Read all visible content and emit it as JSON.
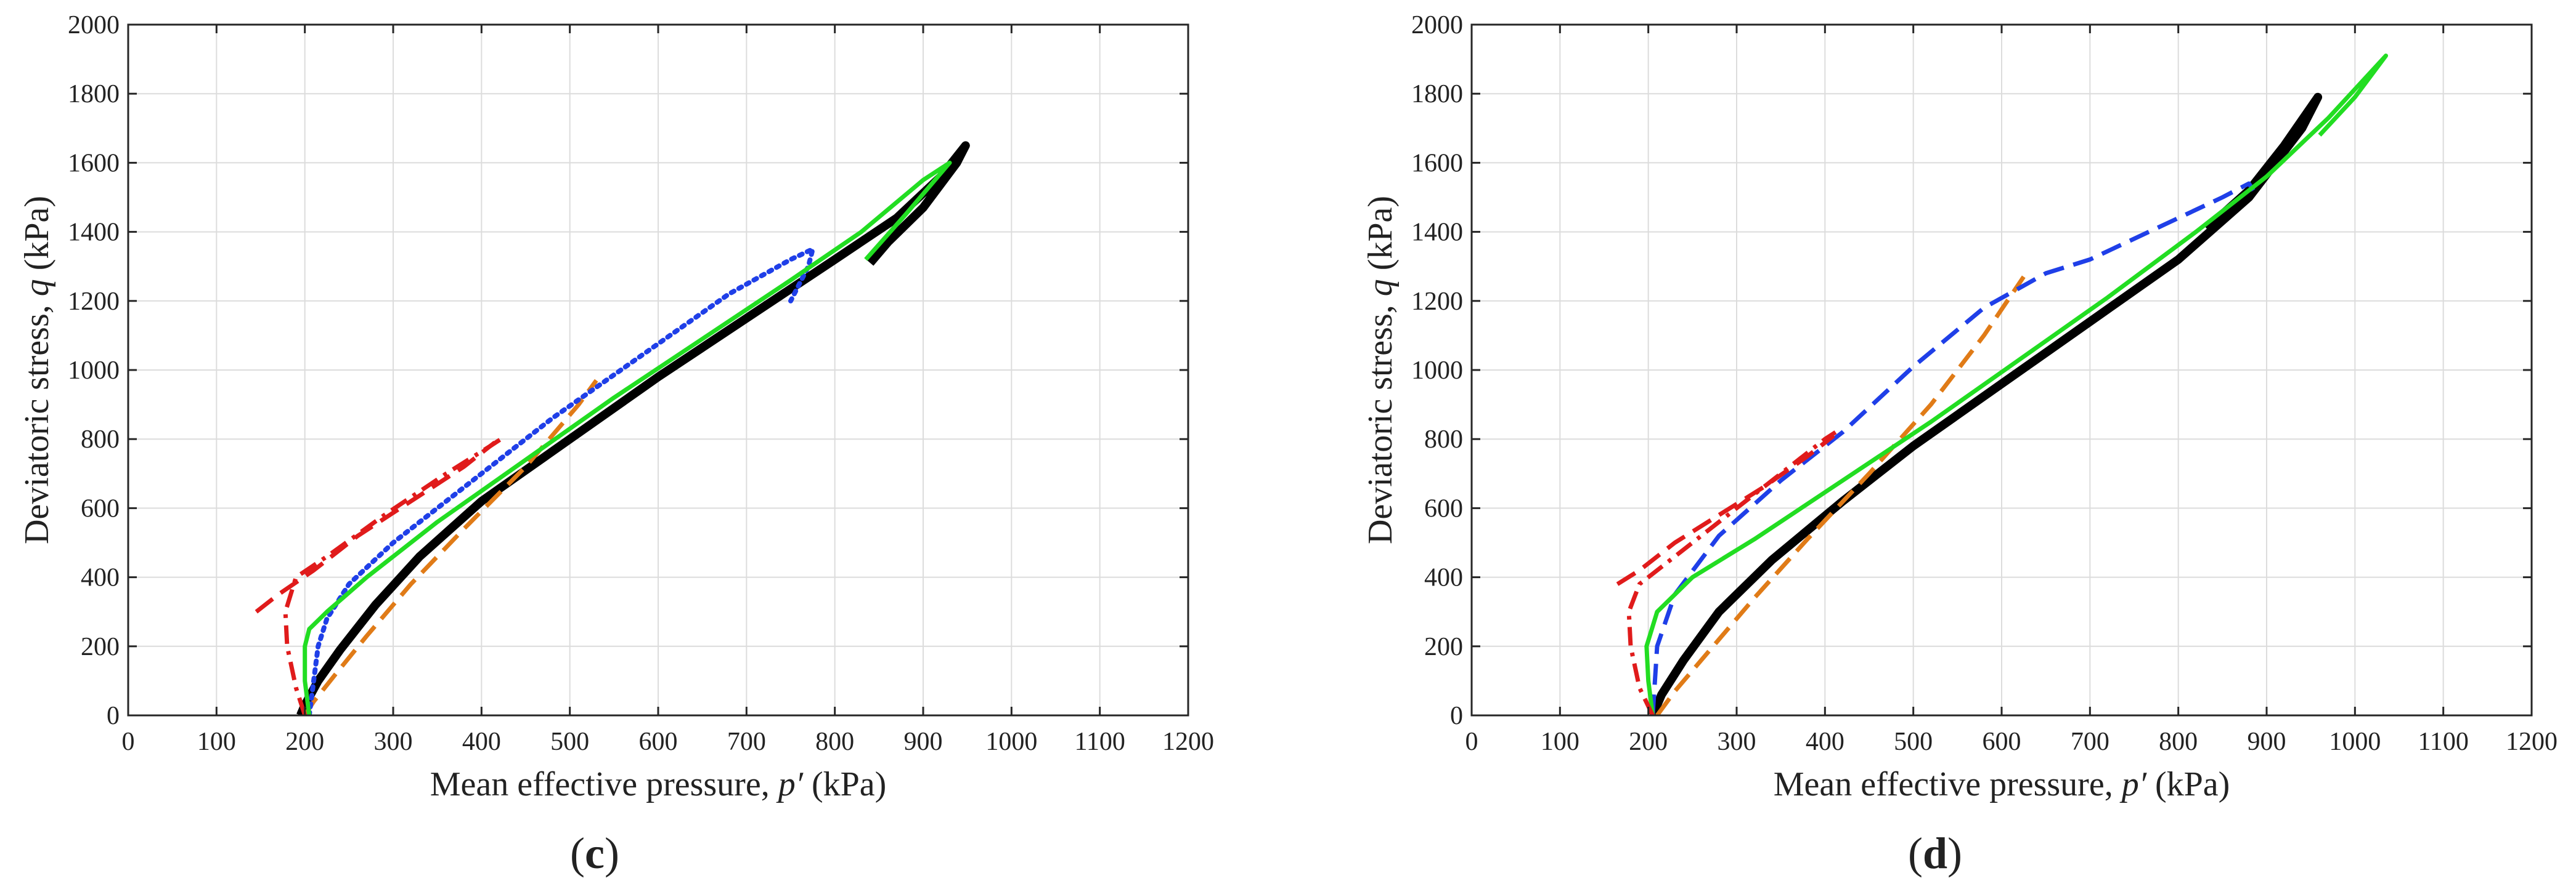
{
  "chart_data": [
    {
      "type": "line",
      "panel_label": "c",
      "xlabel_pre": "Mean effective pressure, ",
      "xlabel_var": "p′",
      "xlabel_unit": " (kPa)",
      "ylabel_pre": "Deviatoric stress, ",
      "ylabel_var": "q",
      "ylabel_unit": " (kPa)",
      "xlim": [
        0,
        1200
      ],
      "ylim": [
        0,
        2000
      ],
      "grid": true,
      "xticks": [
        0,
        100,
        200,
        300,
        400,
        500,
        600,
        700,
        800,
        900,
        1000,
        1100,
        1200
      ],
      "yticks": [
        0,
        200,
        400,
        600,
        800,
        1000,
        1200,
        1400,
        1600,
        1800,
        2000
      ],
      "series": [
        {
          "name": "black-solid",
          "color": "#000000",
          "dash": "solid",
          "width": 14,
          "x": [
            195,
            200,
            215,
            240,
            280,
            330,
            400,
            500,
            600,
            700,
            800,
            870,
            920,
            948,
            938,
            900,
            860,
            840
          ],
          "y": [
            0,
            30,
            100,
            190,
            320,
            460,
            620,
            800,
            980,
            1150,
            1320,
            1440,
            1560,
            1650,
            1600,
            1470,
            1370,
            1310
          ]
        },
        {
          "name": "orange-dashed",
          "color": "#e07b17",
          "dash": "dashed",
          "width": 7,
          "x": [
            200,
            210,
            235,
            270,
            320,
            380,
            450,
            510,
            530
          ],
          "y": [
            0,
            40,
            120,
            230,
            380,
            540,
            720,
            900,
            970
          ]
        },
        {
          "name": "blue-dotted",
          "color": "#1f3fe8",
          "dash": "dotted",
          "width": 8,
          "x": [
            205,
            210,
            215,
            225,
            250,
            300,
            380,
            480,
            580,
            680,
            750,
            775,
            770,
            750
          ],
          "y": [
            0,
            100,
            200,
            280,
            380,
            500,
            660,
            860,
            1040,
            1220,
            1320,
            1350,
            1300,
            1200
          ]
        },
        {
          "name": "green-solid",
          "color": "#22dd22",
          "dash": "solid",
          "width": 7,
          "x": [
            205,
            200,
            200,
            205,
            225,
            270,
            350,
            450,
            550,
            650,
            750,
            830,
            900,
            930,
            880,
            835
          ],
          "y": [
            0,
            100,
            200,
            250,
            300,
            400,
            560,
            740,
            920,
            1090,
            1260,
            1400,
            1550,
            1600,
            1450,
            1320
          ]
        },
        {
          "name": "red-dashdot",
          "color": "#e01b1b",
          "dash": "dashdot",
          "width": 7,
          "x": [
            200,
            190,
            180,
            178,
            190,
            225,
            290,
            360,
            410,
            422
          ],
          "y": [
            0,
            80,
            200,
            300,
            400,
            460,
            580,
            700,
            780,
            800
          ]
        },
        {
          "name": "red-longdash",
          "color": "#e01b1b",
          "dash": "dashed",
          "width": 7,
          "x": [
            145,
            170,
            210,
            260,
            320,
            380,
            415
          ],
          "y": [
            300,
            350,
            420,
            520,
            620,
            720,
            790
          ]
        }
      ]
    },
    {
      "type": "line",
      "panel_label": "d",
      "xlabel_pre": "Mean effective pressure, ",
      "xlabel_var": "p′",
      "xlabel_unit": " (kPa)",
      "ylabel_pre": "Deviatoric stress, ",
      "ylabel_var": "q",
      "ylabel_unit": " (kPa)",
      "xlim": [
        0,
        1200
      ],
      "ylim": [
        0,
        2000
      ],
      "grid": true,
      "xticks": [
        0,
        100,
        200,
        300,
        400,
        500,
        600,
        700,
        800,
        900,
        1000,
        1100,
        1200
      ],
      "yticks": [
        0,
        200,
        400,
        600,
        800,
        1000,
        1200,
        1400,
        1600,
        1800,
        2000
      ],
      "series": [
        {
          "name": "black-solid",
          "color": "#000000",
          "dash": "solid",
          "width": 14,
          "x": [
            205,
            215,
            240,
            280,
            340,
            420,
            500,
            600,
            700,
            800,
            880,
            940,
            958,
            920,
            880,
            832
          ],
          "y": [
            0,
            60,
            160,
            300,
            450,
            620,
            780,
            960,
            1140,
            1320,
            1500,
            1700,
            1790,
            1650,
            1520,
            1410
          ]
        },
        {
          "name": "orange-dashed",
          "color": "#e07b17",
          "dash": "dashed",
          "width": 7,
          "x": [
            210,
            230,
            270,
            320,
            380,
            450,
            520,
            580,
            625
          ],
          "y": [
            0,
            70,
            190,
            340,
            510,
            700,
            900,
            1100,
            1270
          ]
        },
        {
          "name": "blue-dashed",
          "color": "#1f3fe8",
          "dash": "dashed",
          "width": 7,
          "x": [
            205,
            210,
            230,
            280,
            350,
            420,
            500,
            580,
            650,
            700,
            750,
            800,
            850,
            880,
            885
          ],
          "y": [
            0,
            200,
            350,
            520,
            680,
            820,
            1010,
            1180,
            1280,
            1320,
            1380,
            1440,
            1500,
            1540,
            1520
          ]
        },
        {
          "name": "green-solid",
          "color": "#22dd22",
          "dash": "solid",
          "width": 7,
          "x": [
            205,
            200,
            198,
            210,
            250,
            320,
            420,
            520,
            620,
            720,
            820,
            900,
            970,
            1035,
            1000,
            960
          ],
          "y": [
            0,
            100,
            200,
            300,
            400,
            510,
            680,
            850,
            1030,
            1210,
            1400,
            1560,
            1730,
            1910,
            1790,
            1680
          ]
        },
        {
          "name": "red-dashdot",
          "color": "#e01b1b",
          "dash": "dashdot",
          "width": 7,
          "x": [
            205,
            190,
            180,
            178,
            190,
            230,
            290,
            350,
            400,
            412
          ],
          "y": [
            0,
            80,
            200,
            300,
            380,
            460,
            580,
            700,
            800,
            820
          ]
        },
        {
          "name": "red-longdash",
          "color": "#e01b1b",
          "dash": "dashed",
          "width": 7,
          "x": [
            165,
            190,
            230,
            280,
            330,
            380,
            410
          ],
          "y": [
            380,
            420,
            500,
            580,
            660,
            750,
            810
          ]
        }
      ]
    }
  ]
}
